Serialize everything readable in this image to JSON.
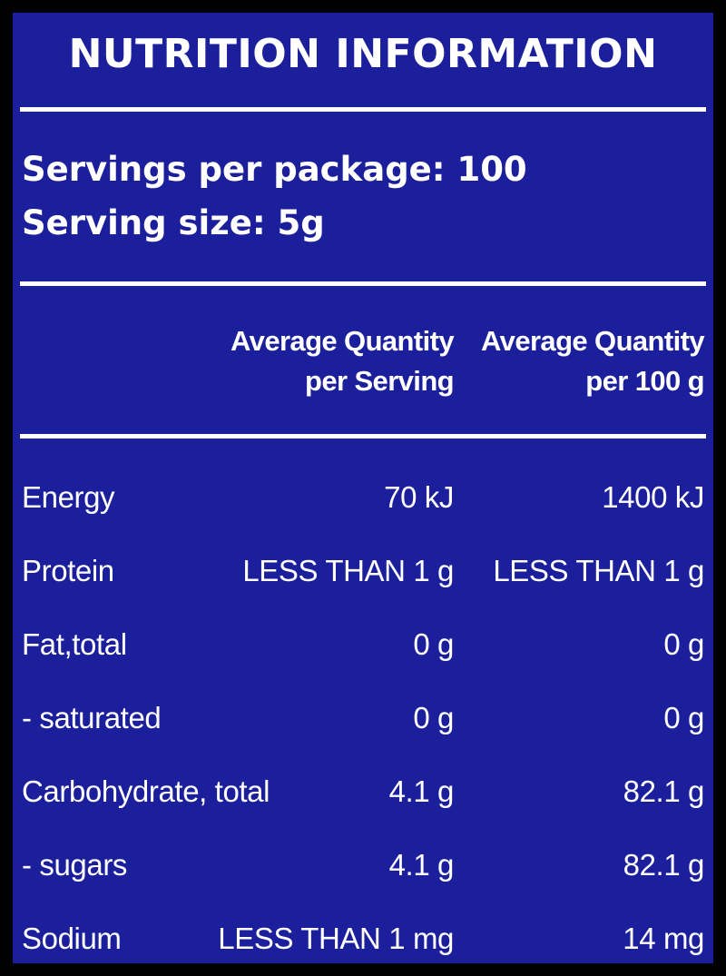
{
  "title": "NUTRITION INFORMATION",
  "servings_per_package": "Servings per package: 100",
  "serving_size": "Serving size: 5g",
  "columns": {
    "per_serving_line1": "Average Quantity",
    "per_serving_line2": "per Serving",
    "per_100g_line1": "Average Quantity",
    "per_100g_line2": "per 100 g"
  },
  "rows": [
    {
      "name": "Energy",
      "per_serving": "70 kJ",
      "per_100g": "1400 kJ"
    },
    {
      "name": "Protein",
      "per_serving": "LESS THAN 1 g",
      "per_100g": "LESS THAN 1 g"
    },
    {
      "name": "Fat,total",
      "per_serving": "0 g",
      "per_100g": "0 g"
    },
    {
      "name": "- saturated",
      "per_serving": "0 g",
      "per_100g": "0 g"
    },
    {
      "name": "Carbohydrate, total",
      "per_serving": "4.1 g",
      "per_100g": "82.1 g"
    },
    {
      "name": "- sugars",
      "per_serving": "4.1 g",
      "per_100g": "82.1 g"
    },
    {
      "name": "Sodium",
      "per_serving": "LESS THAN 1 mg",
      "per_100g": "14 mg"
    }
  ],
  "colors": {
    "background": "#1c1f9b",
    "text": "#ffffff",
    "border": "#000000"
  }
}
